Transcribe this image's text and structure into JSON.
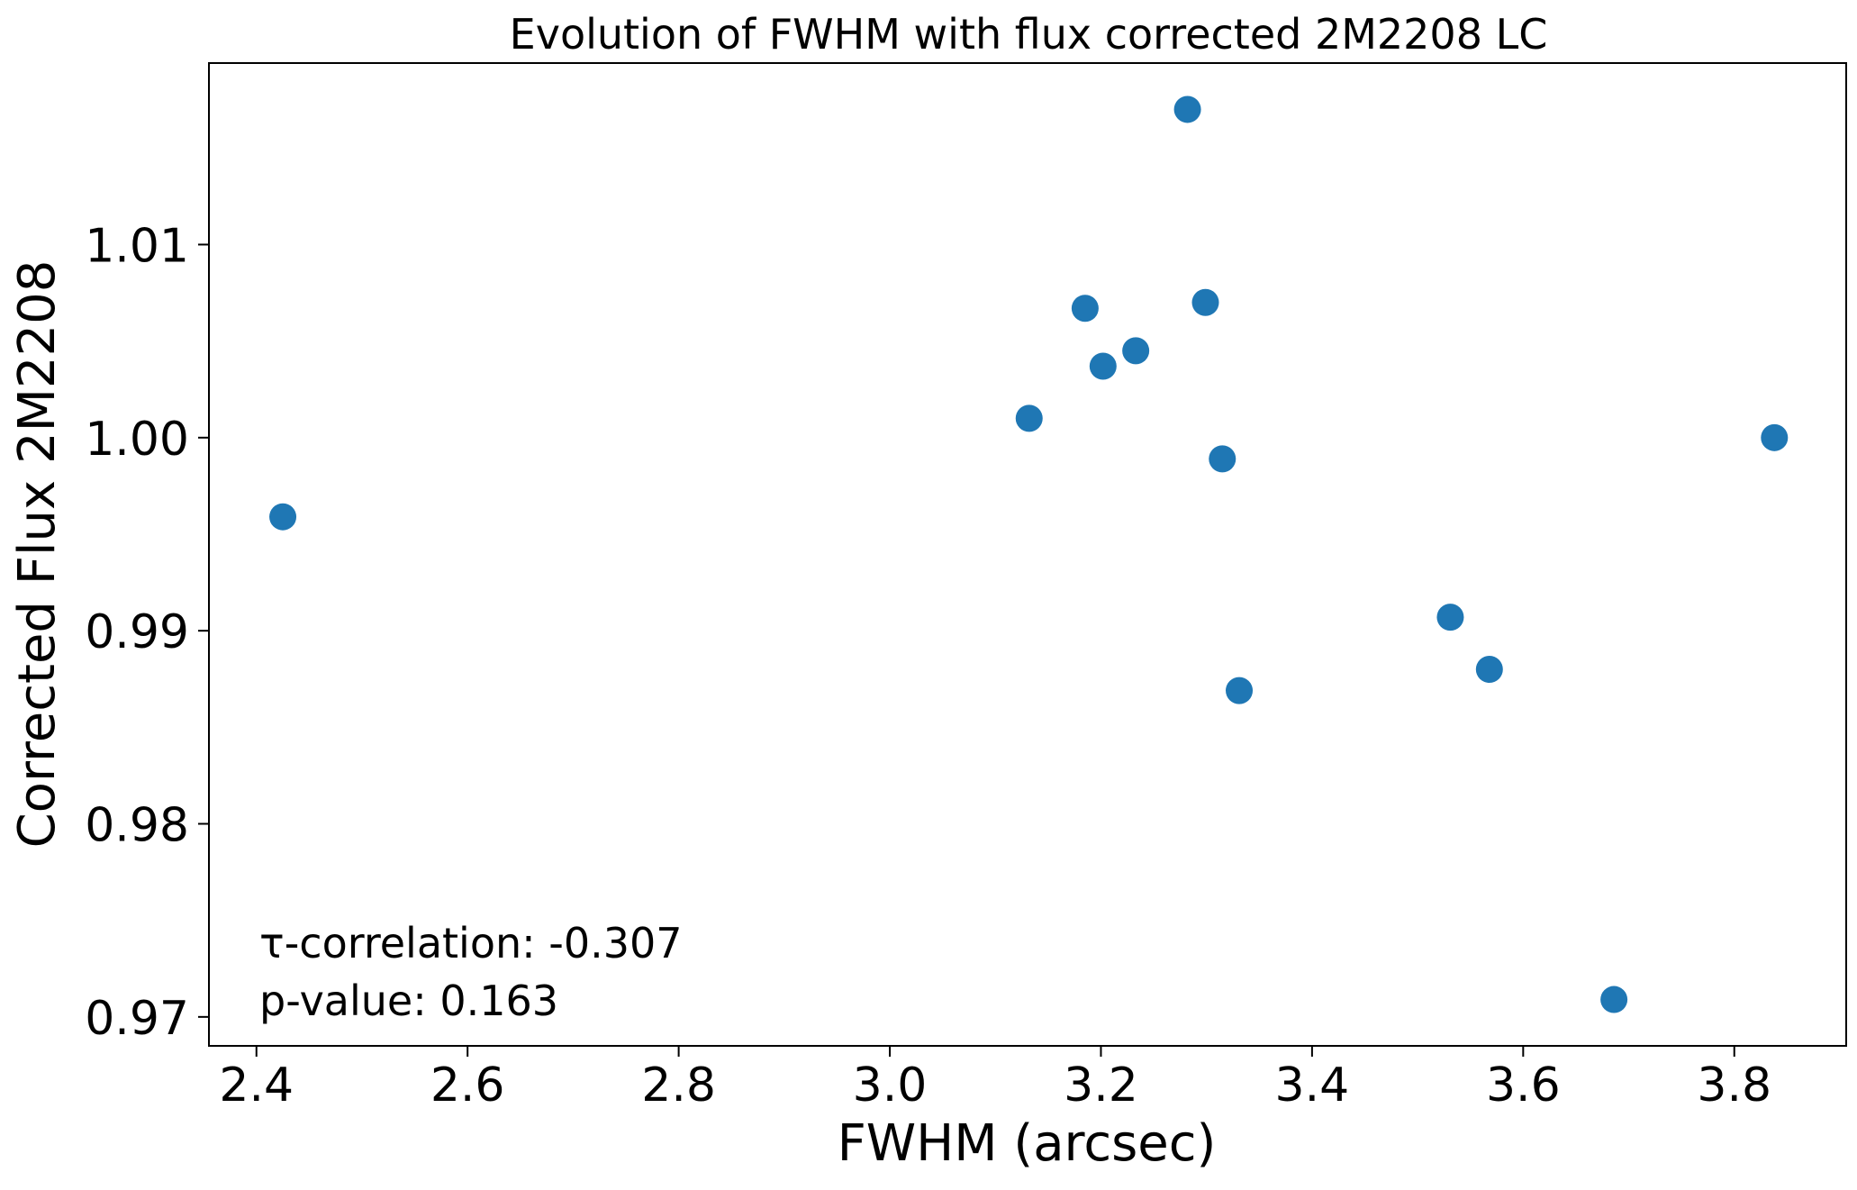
{
  "chart_data": {
    "type": "scatter",
    "title": "Evolution of FWHM with flux corrected 2M2208 LC",
    "xlabel": "FWHM (arcsec)",
    "ylabel": "Corrected Flux 2M2208",
    "xlim": [
      2.355,
      3.906
    ],
    "ylim": [
      0.9685,
      1.0194
    ],
    "x_ticks": [
      2.4,
      2.6,
      2.8,
      3.0,
      3.2,
      3.4,
      3.6,
      3.8
    ],
    "x_tick_labels": [
      "2.4",
      "2.6",
      "2.8",
      "3.0",
      "3.2",
      "3.4",
      "3.6",
      "3.8"
    ],
    "y_ticks": [
      0.97,
      0.98,
      0.99,
      1.0,
      1.01
    ],
    "y_tick_labels": [
      "0.97",
      "0.98",
      "0.99",
      "1.00",
      "1.01"
    ],
    "grid": false,
    "legend": "none",
    "marker_color": "#1f77b4",
    "series": [
      {
        "x": [
          2.425,
          3.132,
          3.185,
          3.202,
          3.233,
          3.282,
          3.299,
          3.315,
          3.331,
          3.531,
          3.568,
          3.686,
          3.838
        ],
        "y": [
          0.9959,
          1.001,
          1.0067,
          1.0037,
          1.0045,
          1.017,
          1.007,
          0.9989,
          0.9869,
          0.9907,
          0.988,
          0.9709,
          1.0
        ]
      }
    ],
    "annotations": [
      "τ-correlation: -0.307",
      "p-value: 0.163"
    ]
  }
}
